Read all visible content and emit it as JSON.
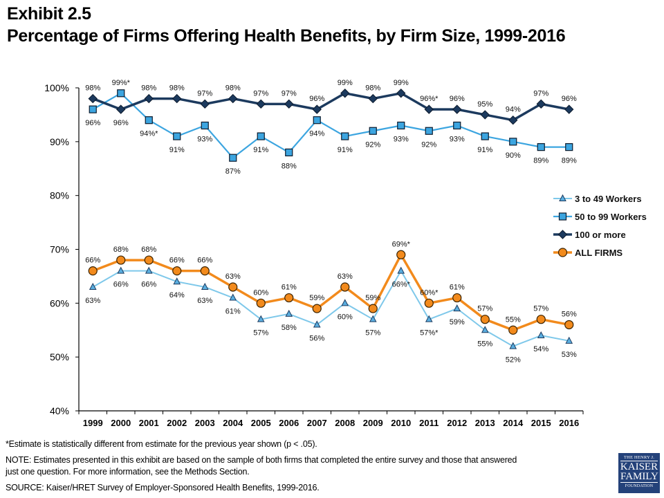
{
  "header": {
    "exhibit": "Exhibit 2.5",
    "title": "Percentage of Firms Offering Health Benefits, by Firm Size, 1999-2016"
  },
  "chart_data": {
    "type": "line",
    "title": "Percentage of Firms Offering Health Benefits, by Firm Size, 1999-2016",
    "xlabel": "",
    "ylabel": "",
    "ylim": [
      40,
      100
    ],
    "yticks": [
      40,
      50,
      60,
      70,
      80,
      90,
      100
    ],
    "ytick_labels": [
      "40%",
      "50%",
      "60%",
      "70%",
      "80%",
      "90%",
      "100%"
    ],
    "grid": false,
    "legend_position": "right",
    "categories": [
      "1999",
      "2000",
      "2001",
      "2002",
      "2003",
      "2004",
      "2005",
      "2006",
      "2007",
      "2008",
      "2009",
      "2010",
      "2011",
      "2012",
      "2013",
      "2014",
      "2015",
      "2016"
    ],
    "series": [
      {
        "name": "3 to 49 Workers",
        "color": "#7ec8ea",
        "marker": "triangle",
        "values": [
          63,
          66,
          66,
          64,
          63,
          61,
          57,
          58,
          56,
          60,
          57,
          66,
          57,
          59,
          55,
          52,
          54,
          53
        ],
        "labels": [
          "63%",
          "66%",
          "66%",
          "64%",
          "63%",
          "61%",
          "57%",
          "58%",
          "56%",
          "60%",
          "57%",
          "66%*",
          "57%*",
          "59%",
          "55%",
          "52%",
          "54%",
          "53%"
        ],
        "label_pos": [
          "below",
          "below",
          "below",
          "below",
          "below",
          "below",
          "below",
          "below",
          "below",
          "below",
          "below",
          "below",
          "below",
          "below",
          "below",
          "below",
          "below",
          "below"
        ]
      },
      {
        "name": "50 to 99 Workers",
        "color": "#3ca5e0",
        "marker": "square",
        "values": [
          96,
          99,
          94,
          91,
          93,
          87,
          91,
          88,
          94,
          91,
          92,
          93,
          92,
          93,
          91,
          90,
          89,
          89
        ],
        "labels": [
          "96%",
          "99%*",
          "94%*",
          "91%",
          "93%",
          "87%",
          "91%",
          "88%",
          "94%",
          "91%",
          "92%",
          "93%",
          "92%",
          "93%",
          "91%",
          "90%",
          "89%",
          "89%"
        ],
        "label_pos": [
          "below",
          "above",
          "below",
          "below",
          "below",
          "below",
          "below",
          "below",
          "below",
          "below",
          "below",
          "below",
          "below",
          "below",
          "below",
          "below",
          "below",
          "below"
        ]
      },
      {
        "name": "100 or more",
        "color": "#1c3a5e",
        "marker": "diamond",
        "values": [
          98,
          96,
          98,
          98,
          97,
          98,
          97,
          97,
          96,
          99,
          98,
          99,
          96,
          96,
          95,
          94,
          97,
          96
        ],
        "labels": [
          "98%",
          "96%",
          "98%",
          "98%",
          "97%",
          "98%",
          "97%",
          "97%",
          "96%",
          "99%",
          "98%",
          "99%",
          "96%*",
          "96%",
          "95%",
          "94%",
          "97%",
          "96%"
        ],
        "label_pos": [
          "above",
          "below",
          "above",
          "above",
          "above",
          "above",
          "above",
          "above",
          "above",
          "above",
          "above",
          "above",
          "above",
          "above",
          "above",
          "above",
          "above",
          "above"
        ]
      },
      {
        "name": "ALL FIRMS",
        "color": "#f28a1c",
        "marker": "circle",
        "values": [
          66,
          68,
          68,
          66,
          66,
          63,
          60,
          61,
          59,
          63,
          59,
          69,
          60,
          61,
          57,
          55,
          57,
          56
        ],
        "labels": [
          "66%",
          "68%",
          "68%",
          "66%",
          "66%",
          "63%",
          "60%",
          "61%",
          "59%",
          "63%",
          "59%",
          "69%*",
          "60%*",
          "61%",
          "57%",
          "55%",
          "57%",
          "56%"
        ],
        "label_pos": [
          "above",
          "above",
          "above",
          "above",
          "above",
          "above",
          "above",
          "above",
          "above",
          "above",
          "above",
          "above",
          "above",
          "above",
          "above",
          "above",
          "above",
          "above"
        ]
      }
    ]
  },
  "footnotes": {
    "significance": "*Estimate is statistically different from estimate for the previous year shown (p < .05).",
    "note": "NOTE: Estimates presented in this exhibit are based on the sample of both firms that completed the entire survey and those that answered just one question. For more information, see the Methods Section.",
    "source": "SOURCE:  Kaiser/HRET Survey of Employer-Sponsored Health Benefits, 1999-2016."
  },
  "logo": {
    "line1": "THE HENRY J.",
    "line2": "KAISER",
    "line3": "FAMILY",
    "line4": "FOUNDATION"
  }
}
